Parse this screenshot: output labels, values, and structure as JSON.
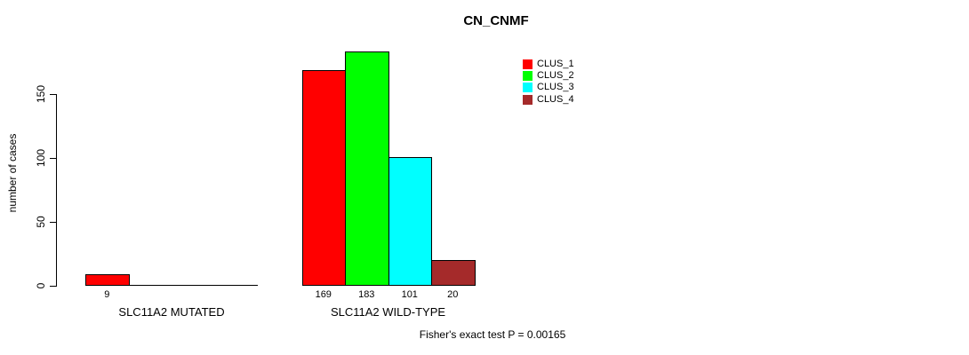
{
  "chart_data": {
    "type": "bar",
    "title": "CN_CNMF",
    "ylabel": "number of cases",
    "xlabel": "",
    "annotation": "Fisher's exact test P = 0.00165",
    "categories": [
      "SLC11A2 MUTATED",
      "SLC11A2 WILD-TYPE"
    ],
    "series": [
      {
        "name": "CLUS_1",
        "color": "#FF0000",
        "values": [
          9,
          169
        ]
      },
      {
        "name": "CLUS_2",
        "color": "#00FF00",
        "values": [
          0,
          183
        ]
      },
      {
        "name": "CLUS_3",
        "color": "#00FFFF",
        "values": [
          0,
          101
        ]
      },
      {
        "name": "CLUS_4",
        "color": "#A52A2A",
        "values": [
          0,
          20
        ]
      }
    ],
    "bar_value_labels": [
      [
        "9",
        "",
        "",
        ""
      ],
      [
        "169",
        "183",
        "101",
        "20"
      ]
    ],
    "yticks": [
      "0",
      "50",
      "100",
      "150"
    ],
    "ylim": [
      0,
      150
    ],
    "grid": false,
    "legend_position": "top-right-inside",
    "axis_color": "#000000",
    "background_color": "#FFFFFF"
  }
}
